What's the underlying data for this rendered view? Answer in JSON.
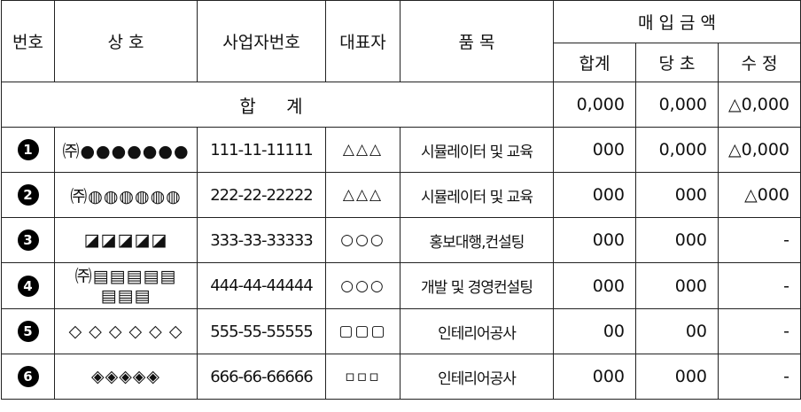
{
  "header": {
    "no": "번호",
    "company": "상 호",
    "biz_no": "사업자번호",
    "rep": "대표자",
    "item": "품 목",
    "purchase": "매 입 금 액",
    "total": "합계",
    "prev": "당 초",
    "revised": "수 정"
  },
  "summary": {
    "label": "합 계",
    "total": "0,000",
    "prev": "0,000",
    "revised": "△0,000"
  },
  "rows": [
    {
      "mark": "1",
      "company": "㈜●●●●●●●",
      "biz_no": "111-11-11111",
      "rep": "△△△",
      "item": "시뮬레이터 및 교육",
      "total": "000",
      "prev": "0,000",
      "revised": "△0,000"
    },
    {
      "mark": "2",
      "company": "㈜◍◍◍◍◍◍",
      "biz_no": "222-22-22222",
      "rep": "△△△",
      "item": "시뮬레이터 및 교육",
      "total": "000",
      "prev": "000",
      "revised": "△000"
    },
    {
      "mark": "3",
      "company": "◪◪◪◪◪",
      "biz_no": "333-33-33333",
      "rep": "○○○",
      "item": "홍보대행,컨설팅",
      "total": "000",
      "prev": "000",
      "revised": "-"
    },
    {
      "mark": "4",
      "company": "㈜▤▤▤▤▤ ▤▤▤",
      "biz_no": "444-44-44444",
      "rep": "○○○",
      "item": "개발 및 경영컨설팅",
      "total": "000",
      "prev": "000",
      "revised": "-"
    },
    {
      "mark": "5",
      "company": "◇ ◇ ◇ ◇ ◇ ◇",
      "biz_no": "555-55-55555",
      "rep": "▢▢▢",
      "item": "인테리어공사",
      "total": "00",
      "prev": "00",
      "revised": "-"
    },
    {
      "mark": "6",
      "company": "◈◈◈◈◈",
      "biz_no": "666-66-66666",
      "rep": "▫▫▫",
      "item": "인테리어공사",
      "total": "000",
      "prev": "000",
      "revised": "-"
    }
  ]
}
